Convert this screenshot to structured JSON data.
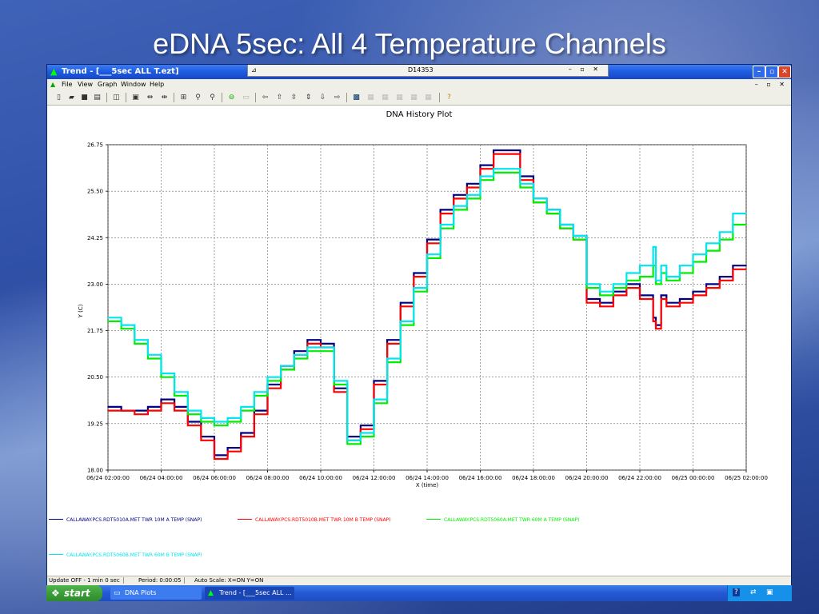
{
  "slide": {
    "title": "eDNA 5sec: All 4 Temperature Channels"
  },
  "window": {
    "title": "Trend  - [___5sec ALL T.ezt]",
    "remote_bar_title": "D14353",
    "remote_bar_controls": "– ▫ ✕",
    "icons": [
      "trend-icon",
      "minimize-icon",
      "restore-icon",
      "close-icon",
      "pin-icon"
    ]
  },
  "menu": {
    "items": [
      "File",
      "View",
      "Graph",
      "Window",
      "Help"
    ],
    "mdi_controls": "– ▫ ✕"
  },
  "toolbar": {
    "icons": [
      "new-icon",
      "open-icon",
      "save-icon",
      "print-icon",
      "preview-icon",
      "properties-icon",
      "move-left-icon",
      "move-right-icon",
      "fit-icon",
      "zoom-in-icon",
      "zoom-out-icon",
      "link-icon",
      "unlink-icon",
      "scroll-left-icon",
      "scroll-up-icon",
      "expand-vertical-icon",
      "collapse-vertical-icon",
      "scroll-down-icon",
      "scroll-right-icon",
      "chart-settings-icon",
      "tool-disabled-1-icon",
      "tool-disabled-2-icon",
      "tool-disabled-3-icon",
      "tool-disabled-4-icon",
      "tool-disabled-5-icon",
      "help-icon"
    ]
  },
  "chart_data": {
    "type": "line",
    "title": "DNA History Plot",
    "xlabel": "X (time)",
    "ylabel": "Y (C)",
    "ylim": [
      18.0,
      26.75
    ],
    "yticks": [
      "18.00",
      "19.25",
      "20.50",
      "21.75",
      "23.00",
      "24.25",
      "25.50",
      "26.75"
    ],
    "xticks": [
      "06/24 02:00:00",
      "06/24 04:00:00",
      "06/24 06:00:00",
      "06/24 08:00:00",
      "06/24 10:00:00",
      "06/24 12:00:00",
      "06/24 14:00:00",
      "06/24 16:00:00",
      "06/24 18:00:00",
      "06/24 20:00:00",
      "06/24 22:00:00",
      "06/25 00:00:00",
      "06/25 02:00:00"
    ],
    "xlim_hours": [
      0,
      24
    ],
    "grid": true,
    "legend_position": "bottom",
    "series": [
      {
        "name": "CALLAWAY.PCS.RDT5010A.MET TWR 10M A TEMP (SNAP)",
        "color": "#000080",
        "x": [
          0,
          0.5,
          1,
          1.5,
          2,
          2.5,
          3,
          3.5,
          4,
          4.5,
          5,
          5.5,
          6,
          6.5,
          7,
          7.5,
          8,
          8.5,
          9,
          9.5,
          10,
          10.5,
          11,
          11.5,
          12,
          12.5,
          13,
          13.5,
          14,
          14.5,
          15,
          15.5,
          16,
          16.5,
          17,
          17.5,
          18,
          18.5,
          19,
          19.5,
          20,
          20.5,
          20.6,
          20.8,
          21,
          21.5,
          22,
          22.5,
          23,
          23.5,
          24
        ],
        "y": [
          19.7,
          19.6,
          19.6,
          19.7,
          19.9,
          19.7,
          19.3,
          18.9,
          18.4,
          18.6,
          19.0,
          19.6,
          20.3,
          20.8,
          21.2,
          21.5,
          21.4,
          20.2,
          18.9,
          19.2,
          20.4,
          21.5,
          22.5,
          23.3,
          24.2,
          25.0,
          25.4,
          25.7,
          26.2,
          26.6,
          26.6,
          25.9,
          25.3,
          25.0,
          24.6,
          24.3,
          22.6,
          22.5,
          22.8,
          23.0,
          22.7,
          22.1,
          21.9,
          22.7,
          22.5,
          22.6,
          22.8,
          23.0,
          23.2,
          23.5,
          23.5
        ]
      },
      {
        "name": "CALLAWAY.PCS.RDT5010B.MET TWR 10M B TEMP (SNAP)",
        "color": "#ff0000",
        "x": [
          0,
          0.5,
          1,
          1.5,
          2,
          2.5,
          3,
          3.5,
          4,
          4.5,
          5,
          5.5,
          6,
          6.5,
          7,
          7.5,
          8,
          8.5,
          9,
          9.5,
          10,
          10.5,
          11,
          11.5,
          12,
          12.5,
          13,
          13.5,
          14,
          14.5,
          15,
          15.5,
          16,
          16.5,
          17,
          17.5,
          18,
          18.5,
          19,
          19.5,
          20,
          20.5,
          20.6,
          20.8,
          21,
          21.5,
          22,
          22.5,
          23,
          23.5,
          24
        ],
        "y": [
          19.6,
          19.6,
          19.5,
          19.6,
          19.8,
          19.6,
          19.2,
          18.8,
          18.3,
          18.5,
          18.9,
          19.5,
          20.2,
          20.7,
          21.1,
          21.4,
          21.3,
          20.1,
          18.8,
          19.1,
          20.3,
          21.4,
          22.4,
          23.2,
          24.1,
          24.9,
          25.3,
          25.6,
          26.1,
          26.5,
          26.5,
          25.8,
          25.2,
          24.9,
          24.5,
          24.2,
          22.5,
          22.4,
          22.7,
          22.9,
          22.6,
          22.0,
          21.8,
          22.6,
          22.4,
          22.5,
          22.7,
          22.9,
          23.1,
          23.4,
          23.4
        ]
      },
      {
        "name": "CALLAWAY.PCS.RDT5060A.MET TWR 60M A TEMP (SNAP)",
        "color": "#00ee00",
        "x": [
          0,
          0.5,
          1,
          1.5,
          2,
          2.5,
          3,
          3.5,
          4,
          4.5,
          5,
          5.5,
          6,
          6.5,
          7,
          7.5,
          8,
          8.5,
          9,
          9.5,
          10,
          10.5,
          11,
          11.5,
          12,
          12.5,
          13,
          13.5,
          14,
          14.5,
          15,
          15.5,
          16,
          16.5,
          17,
          17.5,
          18,
          18.5,
          19,
          19.5,
          20,
          20.5,
          20.6,
          20.8,
          21,
          21.5,
          22,
          22.5,
          23,
          23.5,
          24
        ],
        "y": [
          22.0,
          21.8,
          21.4,
          21.0,
          20.5,
          20.0,
          19.5,
          19.3,
          19.2,
          19.3,
          19.6,
          20.0,
          20.4,
          20.7,
          21.0,
          21.2,
          21.2,
          20.3,
          18.7,
          18.9,
          19.8,
          20.9,
          21.9,
          22.8,
          23.7,
          24.5,
          25.0,
          25.3,
          25.8,
          26.0,
          26.0,
          25.6,
          25.2,
          24.9,
          24.5,
          24.2,
          22.9,
          22.7,
          22.9,
          23.1,
          23.2,
          23.5,
          23.0,
          23.3,
          23.1,
          23.3,
          23.6,
          23.9,
          24.2,
          24.6,
          24.6
        ]
      },
      {
        "name": "CALLAWAY.PCS.RDT5060B.MET TWR 60M B TEMP (SNAP)",
        "color": "#00e5ee",
        "x": [
          0,
          0.5,
          1,
          1.5,
          2,
          2.5,
          3,
          3.5,
          4,
          4.5,
          5,
          5.5,
          6,
          6.5,
          7,
          7.5,
          8,
          8.5,
          9,
          9.5,
          10,
          10.5,
          11,
          11.5,
          12,
          12.5,
          13,
          13.5,
          14,
          14.5,
          15,
          15.5,
          16,
          16.5,
          17,
          17.5,
          18,
          18.5,
          19,
          19.5,
          20,
          20.5,
          20.6,
          20.8,
          21,
          21.5,
          22,
          22.5,
          23,
          23.5,
          24
        ],
        "y": [
          22.1,
          21.9,
          21.5,
          21.1,
          20.6,
          20.1,
          19.6,
          19.4,
          19.3,
          19.4,
          19.7,
          20.1,
          20.5,
          20.8,
          21.1,
          21.3,
          21.3,
          20.4,
          18.8,
          19.0,
          19.9,
          21.0,
          22.0,
          22.9,
          23.8,
          24.6,
          25.1,
          25.4,
          25.9,
          26.1,
          26.1,
          25.7,
          25.3,
          25.0,
          24.6,
          24.3,
          23.0,
          22.8,
          23.0,
          23.3,
          23.5,
          24.0,
          23.1,
          23.5,
          23.2,
          23.5,
          23.8,
          24.1,
          24.4,
          24.9,
          24.9
        ]
      }
    ]
  },
  "status": {
    "update": "Update OFF - 1 min 0 sec",
    "period": "Period: 0:00:05",
    "autoscale": "Auto Scale: X=ON  Y=ON"
  },
  "taskbar": {
    "start_label": "start",
    "buttons": [
      {
        "label": "DNA Plots",
        "icon": "folder-icon"
      },
      {
        "label": "Trend  - [___5sec ALL ...",
        "icon": "trend-icon"
      }
    ],
    "tray_icons": [
      "help-tray-icon",
      "network-icon",
      "monitor-icon"
    ]
  },
  "colors": {
    "titlebar": "#1d5ae0",
    "taskbar": "#2458d4",
    "start_button": "#3a9a36",
    "grid": "#666666"
  }
}
